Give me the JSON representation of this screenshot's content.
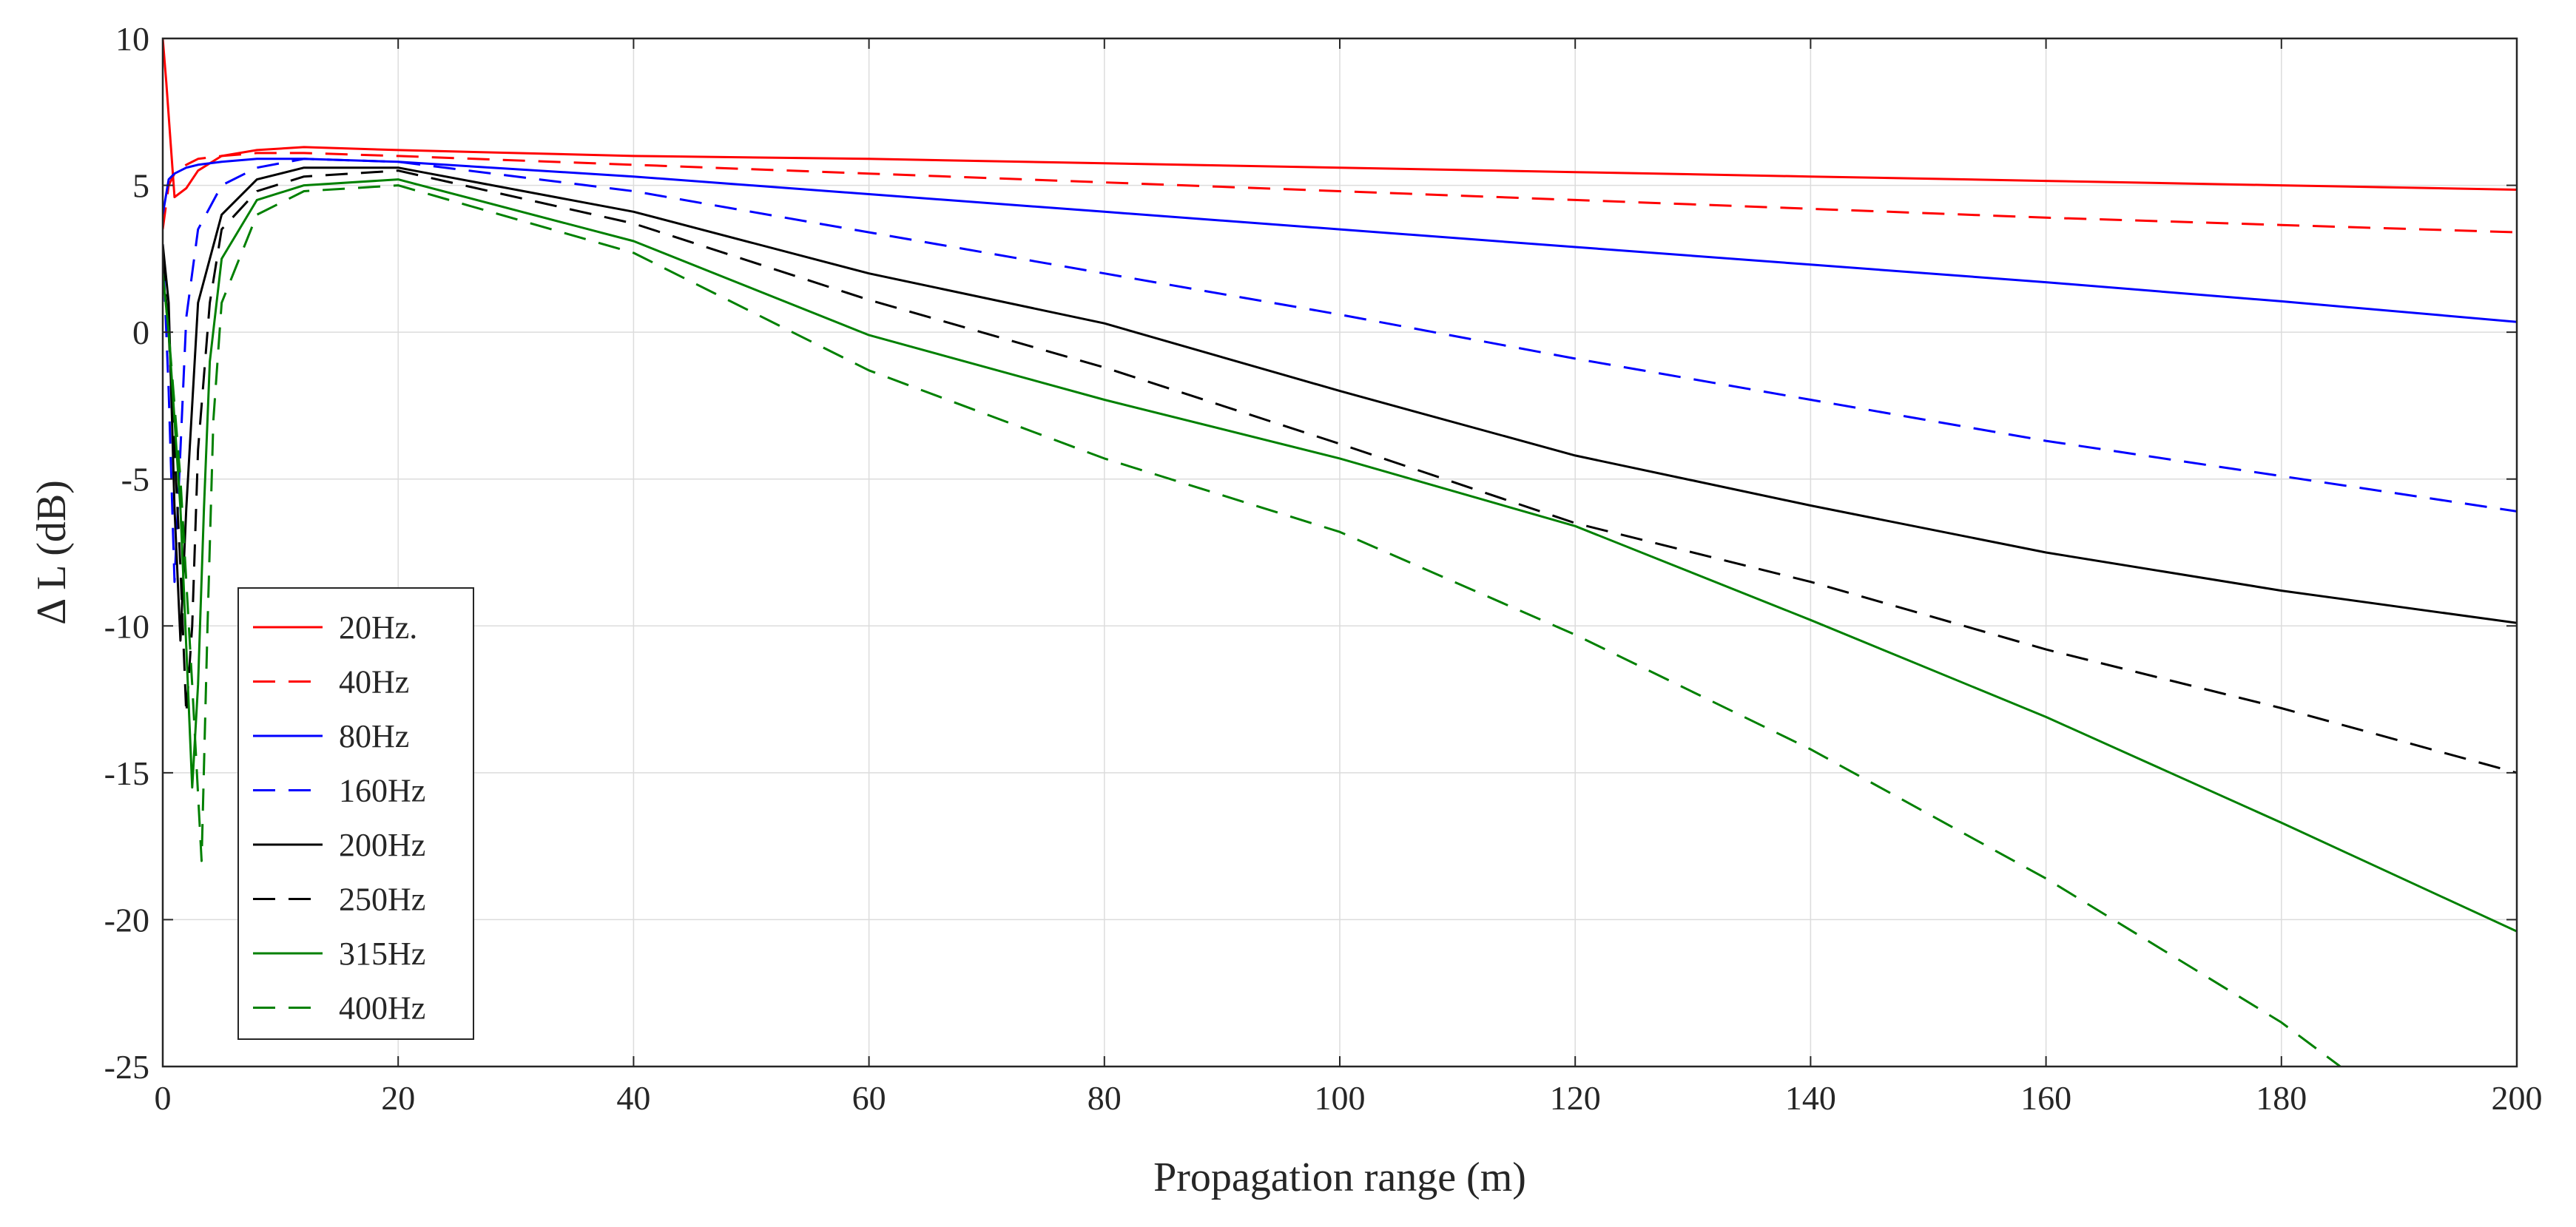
{
  "chart_data": {
    "type": "line",
    "title": "",
    "xlabel": "Propagation range (m)",
    "ylabel": "Δ L (dB)",
    "xlim": [
      0,
      200
    ],
    "ylim": [
      -25,
      10
    ],
    "xticks": [
      0,
      20,
      40,
      60,
      80,
      100,
      120,
      140,
      160,
      180,
      200
    ],
    "yticks": [
      10,
      5,
      0,
      -5,
      -10,
      -15,
      -20,
      -25
    ],
    "xtick_labels": [
      "0",
      "20",
      "40",
      "60",
      "80",
      "100",
      "120",
      "140",
      "160",
      "180",
      "200"
    ],
    "ytick_labels": [
      "10",
      "5",
      "0",
      "-5",
      "-10",
      "-15",
      "-20",
      "-25"
    ],
    "grid": true,
    "legend_position": "bottom-left",
    "series": [
      {
        "name": "20Hz.",
        "color": "#ff0000",
        "dash": "solid",
        "x": [
          0,
          0.3,
          1,
          2,
          3,
          5,
          8,
          12,
          20,
          40,
          60,
          80,
          100,
          120,
          140,
          160,
          180,
          200
        ],
        "y": [
          10,
          8.5,
          4.6,
          4.9,
          5.5,
          6.0,
          6.2,
          6.3,
          6.2,
          6.0,
          5.9,
          5.75,
          5.6,
          5.45,
          5.3,
          5.15,
          5.0,
          4.85
        ]
      },
      {
        "name": "40Hz",
        "color": "#ff0000",
        "dash": "dashed",
        "x": [
          0,
          0.5,
          1,
          2,
          3,
          5,
          8,
          12,
          20,
          40,
          60,
          80,
          100,
          120,
          140,
          160,
          180,
          200
        ],
        "y": [
          3.5,
          5.0,
          5.4,
          5.7,
          5.9,
          6.0,
          6.1,
          6.1,
          6.0,
          5.7,
          5.4,
          5.1,
          4.8,
          4.5,
          4.2,
          3.9,
          3.65,
          3.4
        ]
      },
      {
        "name": "80Hz",
        "color": "#0000ff",
        "dash": "solid",
        "x": [
          0,
          0.5,
          1,
          2,
          3,
          5,
          8,
          12,
          20,
          40,
          60,
          80,
          100,
          120,
          140,
          160,
          180,
          200
        ],
        "y": [
          4.0,
          5.2,
          5.4,
          5.6,
          5.7,
          5.8,
          5.9,
          5.9,
          5.8,
          5.3,
          4.7,
          4.1,
          3.5,
          2.9,
          2.3,
          1.7,
          1.05,
          0.35
        ]
      },
      {
        "name": "160Hz",
        "color": "#0000ff",
        "dash": "dashed",
        "x": [
          0,
          0.5,
          1,
          1.5,
          2,
          3,
          5,
          8,
          12,
          20,
          40,
          60,
          80,
          100,
          120,
          140,
          160,
          180,
          200
        ],
        "y": [
          3.0,
          -2.0,
          -8.5,
          -4.0,
          0.5,
          3.5,
          5.0,
          5.6,
          5.9,
          5.8,
          4.8,
          3.4,
          2.0,
          0.6,
          -0.9,
          -2.3,
          -3.7,
          -4.9,
          -6.1
        ]
      },
      {
        "name": "200Hz",
        "color": "#000000",
        "dash": "solid",
        "x": [
          0,
          0.5,
          1,
          1.5,
          2,
          3,
          5,
          8,
          12,
          20,
          40,
          60,
          80,
          100,
          120,
          140,
          160,
          180,
          200
        ],
        "y": [
          3.0,
          1.0,
          -6.0,
          -10.5,
          -6.0,
          1.0,
          4.0,
          5.2,
          5.6,
          5.6,
          4.1,
          2.0,
          0.3,
          -2.0,
          -4.2,
          -5.9,
          -7.5,
          -8.8,
          -9.9
        ]
      },
      {
        "name": "250Hz",
        "color": "#000000",
        "dash": "dashed",
        "x": [
          0,
          0.5,
          1.5,
          2,
          2.5,
          3,
          4,
          5,
          8,
          12,
          20,
          40,
          60,
          80,
          100,
          120,
          140,
          160,
          180,
          200
        ],
        "y": [
          2.5,
          0.0,
          -8.0,
          -13.0,
          -10.0,
          -4.0,
          1.0,
          3.5,
          4.8,
          5.3,
          5.5,
          3.7,
          1.1,
          -1.2,
          -3.8,
          -6.5,
          -8.5,
          -10.8,
          -12.8,
          -15.0
        ]
      },
      {
        "name": "315Hz",
        "color": "#008000",
        "dash": "solid",
        "x": [
          0,
          0.5,
          1.5,
          2.5,
          3,
          3.5,
          4,
          5,
          8,
          12,
          20,
          40,
          60,
          80,
          100,
          120,
          140,
          160,
          180,
          200
        ],
        "y": [
          2.0,
          0.0,
          -6.0,
          -15.5,
          -12.0,
          -6.0,
          -1.0,
          2.5,
          4.5,
          5.0,
          5.2,
          3.1,
          -0.1,
          -2.3,
          -4.3,
          -6.6,
          -9.8,
          -13.1,
          -16.7,
          -20.4
        ]
      },
      {
        "name": "400Hz",
        "color": "#008000",
        "dash": "dashed",
        "x": [
          0,
          0.5,
          1.5,
          2.5,
          3.3,
          3.8,
          4.3,
          5,
          8,
          12,
          20,
          40,
          60,
          80,
          100,
          120,
          140,
          160,
          180,
          185
        ],
        "y": [
          2.0,
          0.0,
          -5.0,
          -12.0,
          -18.0,
          -10.0,
          -3.0,
          1.0,
          4.0,
          4.8,
          5.0,
          2.7,
          -1.3,
          -4.3,
          -6.8,
          -10.3,
          -14.2,
          -18.6,
          -23.5,
          -25.0
        ]
      }
    ]
  }
}
